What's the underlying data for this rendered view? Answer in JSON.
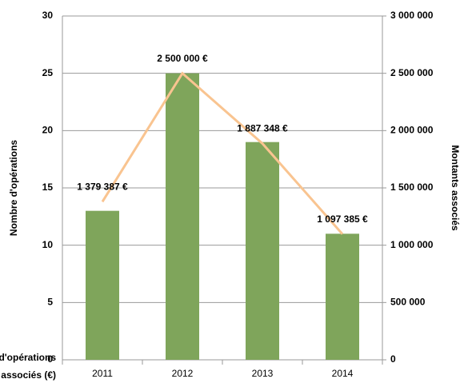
{
  "chart_data": {
    "type": "bar_line",
    "categories": [
      "2011",
      "2012",
      "2013",
      "2014"
    ],
    "series": [
      {
        "name": "Nombre d'opérations",
        "type": "bar",
        "color": "#7fa55b",
        "values": [
          13,
          25,
          19,
          11
        ]
      },
      {
        "name": "Montants associés (€)",
        "type": "line",
        "axis": "y2",
        "color": "#f9c490",
        "values": [
          1379387,
          2500000,
          1887348,
          1097385
        ],
        "value_labels": [
          "1 379 387 €",
          "2 500 000 €",
          "1 887 348 €",
          "1 097 385 €"
        ]
      }
    ],
    "y_label": "Nombre d'opérations",
    "y2_label": "Montants associés",
    "ylim": [
      0,
      30
    ],
    "yticks": [
      0,
      5,
      10,
      15,
      20,
      25,
      30
    ],
    "y2lim": [
      0,
      3000000
    ],
    "y2ticks": [
      0,
      {
        "value": 500000,
        "label": "500 000"
      },
      {
        "value": 1000000,
        "label": "1 000 000"
      },
      {
        "value": 1500000,
        "label": "1 500 000"
      },
      {
        "value": 2000000,
        "label": "2 000 000"
      },
      {
        "value": 2500000,
        "label": "2 500 000"
      },
      {
        "value": 3000000,
        "label": "3 000 000"
      }
    ],
    "grid": true,
    "legend": "bottom-left"
  }
}
